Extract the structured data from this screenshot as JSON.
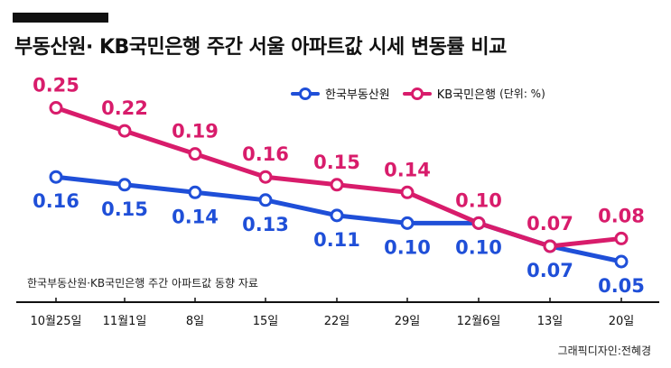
{
  "title": "부동산원· KB국민은행 주간 서울 아파트값 시세 변동률 비교",
  "legend": {
    "unit": "(단위: %)"
  },
  "source_note": "한국부동산원·KB국민은행 주간 아파트값 동향 자료",
  "credit": "그래픽디자인:전혜경",
  "colors": {
    "blue": "#1f4fd8",
    "pink": "#d81c6b",
    "axis": "#111111"
  },
  "chart_data": {
    "type": "line",
    "categories": [
      "10월25일",
      "11월1일",
      "8일",
      "15일",
      "22일",
      "29일",
      "12월6일",
      "13일",
      "20일"
    ],
    "series": [
      {
        "name": "한국부동산원",
        "color": "#1f4fd8",
        "values": [
          0.16,
          0.15,
          0.14,
          0.13,
          0.11,
          0.1,
          0.1,
          0.07,
          0.05
        ],
        "labels": [
          "0.16",
          "0.15",
          "0.14",
          "0.13",
          "0.11",
          "0.10",
          "0.10",
          "0.07",
          "0.05"
        ]
      },
      {
        "name": "KB국민은행",
        "color": "#d81c6b",
        "values": [
          0.25,
          0.22,
          0.19,
          0.16,
          0.15,
          0.14,
          0.1,
          0.07,
          0.08
        ],
        "labels": [
          "0.25",
          "0.22",
          "0.19",
          "0.16",
          "0.15",
          "0.14",
          "0.10",
          "0.07",
          "0.08"
        ]
      }
    ]
  }
}
